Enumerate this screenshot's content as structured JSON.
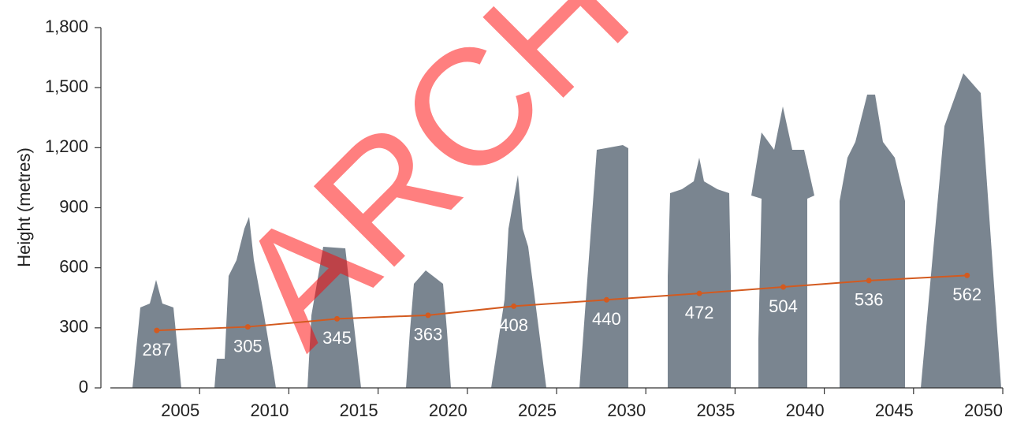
{
  "chart_data": {
    "type": "line",
    "y_label": "Height (metres)",
    "watermark": "ARCH",
    "x": [
      2002.6,
      2007.7,
      2012.7,
      2017.8,
      2022.6,
      2027.8,
      2033,
      2037.7,
      2042.5,
      2048
    ],
    "values": [
      287,
      305,
      345,
      363,
      408,
      440,
      472,
      504,
      536,
      562
    ],
    "color": "#d35a1f",
    "xlim": [
      2000,
      2050
    ],
    "xticks": [
      2005,
      2010,
      2015,
      2020,
      2025,
      2030,
      2035,
      2040,
      2045,
      2050
    ],
    "ylim": [
      0,
      1800
    ],
    "yticks": [
      0,
      300,
      600,
      900,
      {
        "value": 1200,
        "label": "1,200"
      },
      {
        "value": 1500,
        "label": "1,500"
      },
      {
        "value": 1800,
        "label": "1,800"
      }
    ],
    "grid": false
  }
}
